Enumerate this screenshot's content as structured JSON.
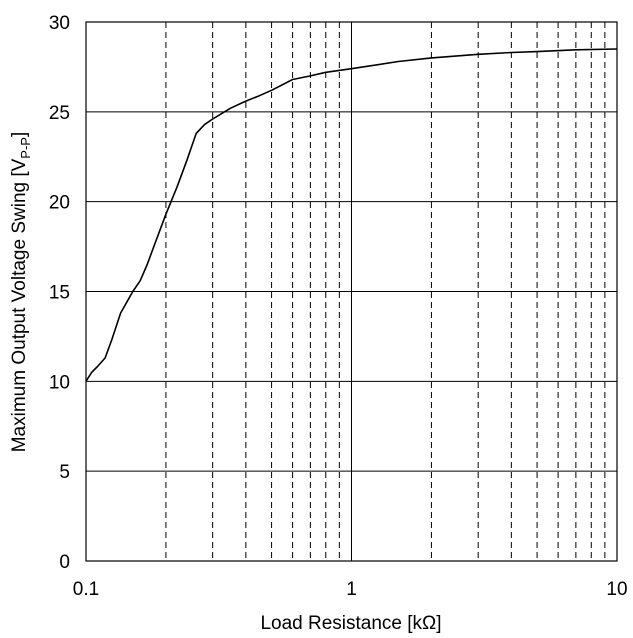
{
  "chart_data": {
    "type": "line",
    "title": "",
    "xlabel": "Load Resistance [kΩ]",
    "ylabel": "Maximum Output Voltage Swing [V",
    "ylabel_subscript": "P-P",
    "ylabel_suffix": "]",
    "x_scale": "log",
    "xlim": [
      0.1,
      10
    ],
    "ylim": [
      0,
      30
    ],
    "x_ticks": [
      0.1,
      1,
      10
    ],
    "x_tick_labels": [
      "0.1",
      "1",
      "10"
    ],
    "x_minor_gridlines": [
      0.2,
      0.3,
      0.4,
      0.5,
      0.6,
      0.7,
      0.8,
      0.9,
      2,
      3,
      4,
      5,
      6,
      7,
      8,
      9
    ],
    "y_ticks": [
      0,
      5,
      10,
      15,
      20,
      25,
      30
    ],
    "y_tick_labels": [
      "0",
      "5",
      "10",
      "15",
      "20",
      "25",
      "30"
    ],
    "grid": true,
    "legend": "none",
    "colors": {
      "line": "#000000",
      "grid": "#000000",
      "background": "#ffffff"
    },
    "series": [
      {
        "x": [
          0.1,
          0.105,
          0.11,
          0.118,
          0.125,
          0.135,
          0.15,
          0.16,
          0.17,
          0.18,
          0.2,
          0.22,
          0.24,
          0.26,
          0.28,
          0.3,
          0.35,
          0.4,
          0.45,
          0.5,
          0.6,
          0.7,
          0.8,
          1.0,
          1.5,
          2.0,
          3.0,
          4.0,
          5.0,
          7.0,
          10.0
        ],
        "y": [
          10.0,
          10.5,
          10.8,
          11.3,
          12.3,
          13.8,
          15.0,
          15.6,
          16.5,
          17.5,
          19.3,
          20.8,
          22.3,
          23.8,
          24.3,
          24.6,
          25.2,
          25.6,
          25.9,
          26.2,
          26.8,
          27.0,
          27.2,
          27.4,
          27.8,
          28.0,
          28.2,
          28.3,
          28.35,
          28.45,
          28.5
        ]
      }
    ]
  }
}
